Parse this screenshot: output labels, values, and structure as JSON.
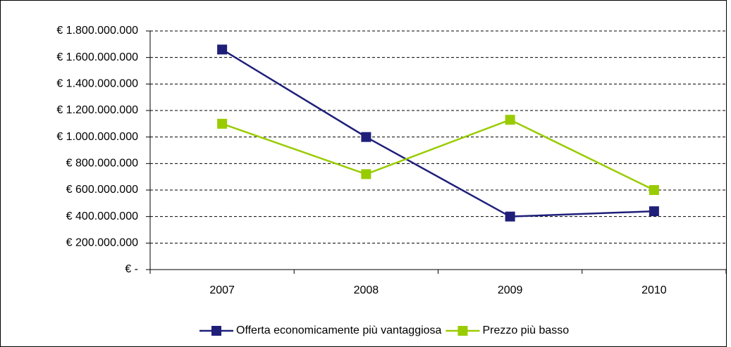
{
  "chart_data": {
    "type": "line",
    "categories": [
      "2007",
      "2008",
      "2009",
      "2010"
    ],
    "series": [
      {
        "name": "Offerta economicamente più vantaggiosa",
        "color": "#1f1f7a",
        "values": [
          1660000000,
          1000000000,
          400000000,
          440000000
        ]
      },
      {
        "name": "Prezzo più basso",
        "color": "#99cc00",
        "values": [
          1100000000,
          720000000,
          1130000000,
          600000000
        ]
      }
    ],
    "ylim": [
      0,
      1800000000
    ],
    "yticks": [
      {
        "value": 0,
        "label": "€ -"
      },
      {
        "value": 200000000,
        "label": "€ 200.000.000"
      },
      {
        "value": 400000000,
        "label": "€ 400.000.000"
      },
      {
        "value": 600000000,
        "label": "€ 600.000.000"
      },
      {
        "value": 800000000,
        "label": "€ 800.000.000"
      },
      {
        "value": 1000000000,
        "label": "€ 1.000.000.000"
      },
      {
        "value": 1200000000,
        "label": "€ 1.200.000.000"
      },
      {
        "value": 1400000000,
        "label": "€ 1.400.000.000"
      },
      {
        "value": 1600000000,
        "label": "€ 1.600.000.000"
      },
      {
        "value": 1800000000,
        "label": "€ 1.800.000.000"
      }
    ],
    "grid": true,
    "legend": "bottom"
  }
}
